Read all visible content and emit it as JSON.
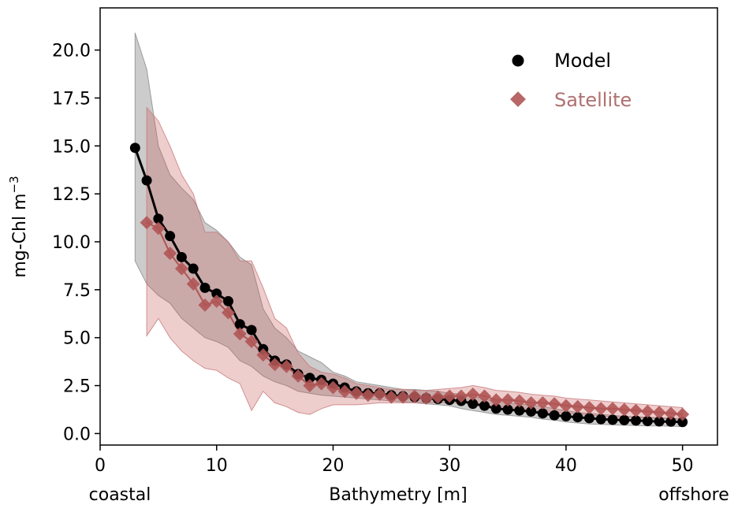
{
  "colors": {
    "model": "#000000",
    "model_band": "#9a9a9a",
    "satellite": "#b05555",
    "satellite_band": "#c85a5a",
    "satellite_legend_text": "#b07070"
  },
  "chart_data": {
    "type": "line",
    "title": "",
    "xlabel": "Bathymetry [m]",
    "ylabel_text": "mg-Chl m",
    "ylabel_exponent": "−3",
    "xlabel_left": "coastal",
    "xlabel_right": "offshore",
    "xlim": [
      0,
      53
    ],
    "ylim": [
      -0.6,
      22.2
    ],
    "xticks": [
      0,
      10,
      20,
      30,
      40,
      50
    ],
    "xtick_labels": [
      "0",
      "10",
      "20",
      "30",
      "40",
      "50"
    ],
    "yticks": [
      0,
      2.5,
      5,
      7.5,
      10,
      12.5,
      15,
      17.5,
      20
    ],
    "ytick_labels": [
      "0.0",
      "2.5",
      "5.0",
      "7.5",
      "10.0",
      "12.5",
      "15.0",
      "17.5",
      "20.0"
    ],
    "legend": {
      "position": "top-right",
      "entries": [
        "Model",
        "Satellite"
      ]
    },
    "series": [
      {
        "name": "Model",
        "marker": "circle",
        "x": [
          3,
          4,
          5,
          6,
          7,
          8,
          9,
          10,
          11,
          12,
          13,
          14,
          15,
          16,
          17,
          18,
          19,
          20,
          21,
          22,
          23,
          24,
          25,
          26,
          27,
          28,
          29,
          30,
          31,
          32,
          33,
          34,
          35,
          36,
          37,
          38,
          39,
          40,
          41,
          42,
          43,
          44,
          45,
          46,
          47,
          48,
          49,
          50
        ],
        "y": [
          14.9,
          13.2,
          11.2,
          10.3,
          9.2,
          8.6,
          7.6,
          7.3,
          6.9,
          5.7,
          5.4,
          4.4,
          3.8,
          3.6,
          3.1,
          2.9,
          2.8,
          2.6,
          2.4,
          2.2,
          2.1,
          2.1,
          2.0,
          1.95,
          1.9,
          1.85,
          1.8,
          1.75,
          1.7,
          1.55,
          1.45,
          1.3,
          1.25,
          1.2,
          1.15,
          1.05,
          0.95,
          0.9,
          0.85,
          0.8,
          0.75,
          0.72,
          0.7,
          0.68,
          0.65,
          0.63,
          0.62,
          0.6
        ],
        "upper": [
          20.9,
          19.0,
          15.0,
          13.5,
          12.8,
          12.2,
          11.0,
          10.6,
          10.0,
          9.2,
          8.8,
          6.5,
          5.5,
          5.0,
          4.3,
          4.0,
          3.7,
          3.2,
          3.0,
          2.7,
          2.6,
          2.5,
          2.4,
          2.3,
          2.3,
          2.25,
          2.2,
          2.1,
          2.05,
          1.95,
          1.8,
          1.7,
          1.6,
          1.55,
          1.5,
          1.4,
          1.3,
          1.2,
          1.1,
          1.05,
          1.0,
          0.95,
          0.9,
          0.88,
          0.85,
          0.82,
          0.8,
          0.78
        ],
        "lower": [
          9.0,
          7.8,
          7.2,
          6.8,
          6.0,
          5.5,
          5.0,
          4.8,
          4.5,
          3.8,
          3.5,
          3.0,
          2.7,
          2.5,
          2.2,
          2.1,
          2.0,
          1.95,
          1.9,
          1.85,
          1.8,
          1.75,
          1.7,
          1.65,
          1.6,
          1.55,
          1.5,
          1.45,
          1.3,
          1.2,
          1.1,
          1.0,
          0.95,
          0.9,
          0.85,
          0.75,
          0.7,
          0.6,
          0.55,
          0.5,
          0.48,
          0.45,
          0.43,
          0.42,
          0.4,
          0.4,
          0.38,
          0.36
        ]
      },
      {
        "name": "Satellite",
        "marker": "diamond",
        "x": [
          4,
          5,
          6,
          7,
          8,
          9,
          10,
          11,
          12,
          13,
          14,
          15,
          16,
          17,
          18,
          19,
          20,
          21,
          22,
          23,
          24,
          25,
          26,
          27,
          28,
          29,
          30,
          31,
          32,
          33,
          34,
          35,
          36,
          37,
          38,
          39,
          40,
          41,
          42,
          43,
          44,
          45,
          46,
          47,
          48,
          49,
          50
        ],
        "y": [
          11.0,
          10.7,
          9.4,
          8.6,
          7.8,
          6.7,
          6.9,
          6.3,
          5.2,
          4.8,
          4.1,
          3.6,
          3.5,
          3.0,
          2.5,
          2.6,
          2.4,
          2.2,
          2.1,
          2.0,
          2.05,
          1.9,
          1.9,
          1.95,
          1.85,
          1.9,
          1.95,
          1.95,
          2.05,
          1.95,
          1.75,
          1.75,
          1.7,
          1.6,
          1.6,
          1.55,
          1.45,
          1.4,
          1.35,
          1.3,
          1.3,
          1.25,
          1.2,
          1.15,
          1.1,
          1.05,
          1.0
        ],
        "upper": [
          17.0,
          16.3,
          15.0,
          13.5,
          12.5,
          10.5,
          10.5,
          10.0,
          9.0,
          9.0,
          7.6,
          6.0,
          5.5,
          4.2,
          3.5,
          3.2,
          3.1,
          2.9,
          2.6,
          2.5,
          2.4,
          2.3,
          2.3,
          2.25,
          2.25,
          2.3,
          2.35,
          2.4,
          2.5,
          2.4,
          2.25,
          2.2,
          2.15,
          2.05,
          2.0,
          1.95,
          1.85,
          1.8,
          1.75,
          1.7,
          1.65,
          1.6,
          1.55,
          1.5,
          1.45,
          1.4,
          1.35
        ],
        "lower": [
          5.1,
          6.0,
          5.0,
          4.3,
          3.8,
          3.4,
          3.3,
          2.9,
          2.6,
          1.2,
          2.2,
          1.6,
          1.4,
          1.1,
          1.0,
          1.3,
          1.5,
          1.5,
          1.5,
          1.55,
          1.6,
          1.6,
          1.6,
          1.6,
          1.6,
          1.6,
          1.6,
          1.6,
          1.6,
          1.5,
          1.4,
          1.35,
          1.3,
          1.2,
          1.15,
          1.1,
          1.05,
          1.0,
          0.95,
          0.9,
          0.88,
          0.85,
          0.82,
          0.8,
          0.78,
          0.75,
          0.72
        ]
      }
    ]
  }
}
